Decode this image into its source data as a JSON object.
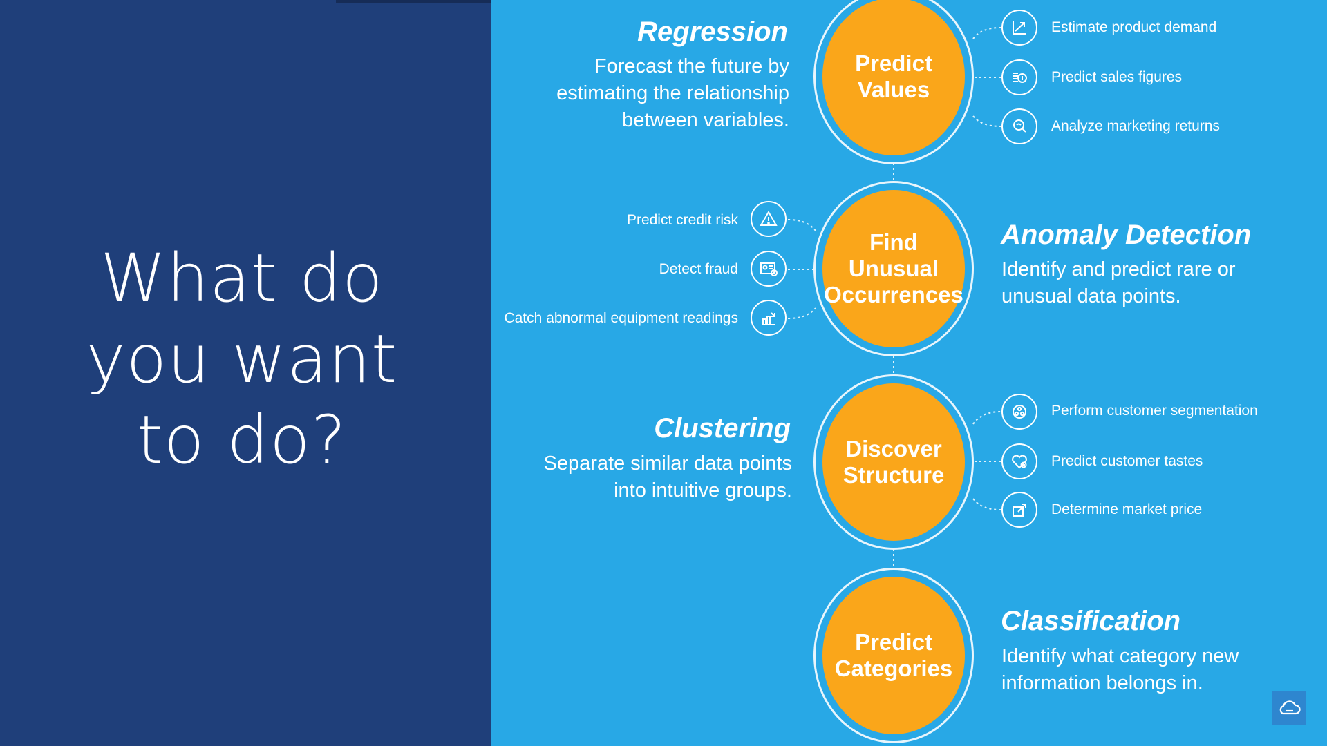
{
  "headline": {
    "lines": [
      "What do",
      "you want",
      "to do?"
    ]
  },
  "sections": {
    "regression": {
      "circle_lines": [
        "Predict",
        "Values"
      ],
      "title": "Regression",
      "desc_lines": [
        "Forecast the future by",
        "estimating the relationship",
        "between variables."
      ],
      "items": [
        {
          "label": "Estimate product demand",
          "icon": "trend-chart-icon"
        },
        {
          "label": "Predict sales figures",
          "icon": "coins-icon"
        },
        {
          "label": "Analyze marketing returns",
          "icon": "magnifier-icon"
        }
      ]
    },
    "anomaly": {
      "circle_lines": [
        "Find",
        "Unusual",
        "Occurrences"
      ],
      "title": "Anomaly Detection",
      "desc_lines": [
        "Identify and predict rare or",
        "unusual data points."
      ],
      "items": [
        {
          "label": "Predict credit risk",
          "icon": "warning-icon"
        },
        {
          "label": "Detect fraud",
          "icon": "id-card-icon"
        },
        {
          "label": "Catch abnormal equipment readings",
          "icon": "bar-chart-icon"
        }
      ]
    },
    "clustering": {
      "circle_lines": [
        "Discover",
        "Structure"
      ],
      "title": "Clustering",
      "desc_lines": [
        "Separate similar data points",
        "into intuitive groups."
      ],
      "items": [
        {
          "label": "Perform customer segmentation",
          "icon": "people-group-icon"
        },
        {
          "label": "Predict customer tastes",
          "icon": "heart-icon"
        },
        {
          "label": "Determine market price",
          "icon": "price-tag-icon"
        }
      ]
    },
    "classification": {
      "circle_lines": [
        "Predict",
        "Categories"
      ],
      "title": "Classification",
      "desc_lines": [
        "Identify what category new",
        "information belongs in."
      ]
    }
  },
  "colors": {
    "left_bg": "#1f3f7a",
    "right_bg": "#28a8e6",
    "circle_fill": "#faa61a"
  },
  "corner_button": {
    "icon": "cloud-icon"
  }
}
